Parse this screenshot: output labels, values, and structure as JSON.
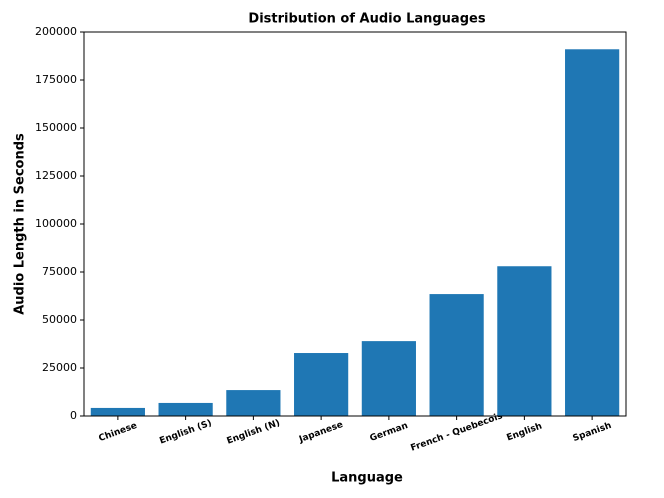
{
  "chart_data": {
    "type": "bar",
    "title": "Distribution of Audio Languages",
    "x_label": "Language",
    "y_label": "Audio Length in Seconds",
    "categories": [
      "Chinese",
      "English (S)",
      "English (N)",
      "Japanese",
      "German",
      "French - Quebecois",
      "English",
      "Spanish"
    ],
    "values": [
      4200,
      6800,
      13500,
      32800,
      39000,
      63500,
      78000,
      191000
    ],
    "color": "#1f77b4",
    "ylim": [
      0,
      200000
    ],
    "yticks": [
      0,
      25000,
      50000,
      75000,
      100000,
      125000,
      150000,
      175000,
      200000
    ],
    "grid": false
  }
}
